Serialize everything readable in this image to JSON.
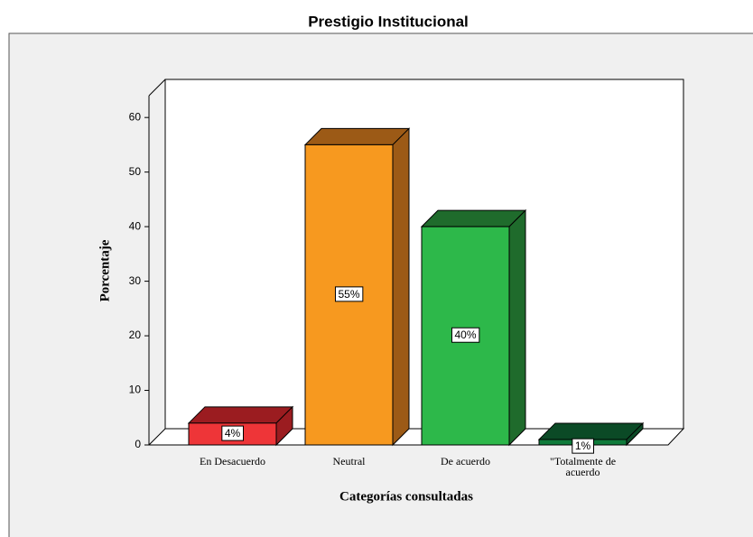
{
  "chart_data": {
    "type": "bar3d",
    "title": "Prestigio Institucional",
    "categories": [
      "En Desacuerdo",
      "Neutral",
      "De acuerdo",
      "\"Totalmente de acuerdo"
    ],
    "values": [
      4,
      55,
      40,
      1
    ],
    "value_labels": [
      "4%",
      "55%",
      "40%",
      "1%"
    ],
    "colors": [
      "#ee3538",
      "#f7991f",
      "#2db84a",
      "#0e7a3a"
    ],
    "side_colors": [
      "#9b1c20",
      "#9c5a16",
      "#1f6b2c",
      "#0b4a26"
    ],
    "xlabel": "Categorías consultadas",
    "ylabel": "Porcentaje",
    "ylim": [
      0,
      64
    ],
    "yticks": [
      0,
      10,
      20,
      30,
      40,
      50,
      60
    ]
  }
}
